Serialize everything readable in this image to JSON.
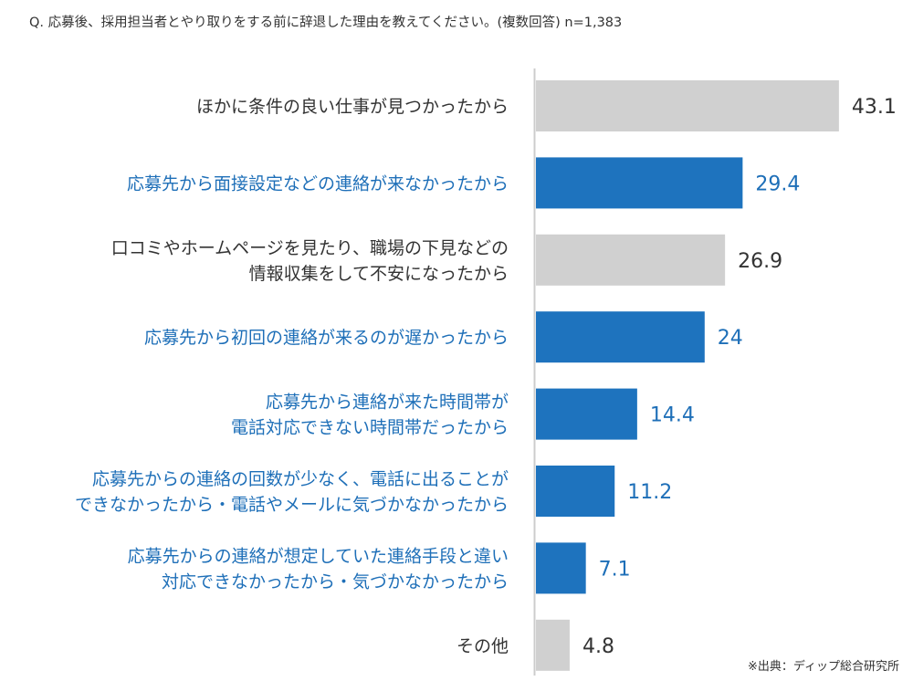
{
  "chart_data": {
    "type": "bar",
    "orientation": "horizontal",
    "title": "Q. 応募後、採用担当者とやり取りをする前に辞退した理由を教えてください。(複数回答) n=1,383",
    "categories": [
      [
        "ほかに条件の良い仕事が見つかったから"
      ],
      [
        "応募先から面接設定などの連絡が来なかったから"
      ],
      [
        "口コミやホームページを見たり、職場の下見などの",
        "情報収集をして不安になったから"
      ],
      [
        "応募先から初回の連絡が来るのが遅かったから"
      ],
      [
        "応募先から連絡が来た時間帯が",
        "電話対応できない時間帯だったから"
      ],
      [
        "応募先からの連絡の回数が少なく、電話に出ることが",
        "できなかったから・電話やメールに気づかなかったから"
      ],
      [
        "応募先からの連絡が想定していた連絡手段と違い",
        "対応できなかったから・気づかなかったから"
      ],
      [
        "その他"
      ]
    ],
    "values": [
      43.1,
      29.4,
      26.9,
      24,
      14.4,
      11.2,
      7.1,
      4.8
    ],
    "value_labels": [
      "43.1",
      "29.4",
      "26.9",
      "24",
      "14.4",
      "11.2",
      "7.1",
      "4.8"
    ],
    "highlighted": [
      false,
      true,
      false,
      true,
      true,
      true,
      true,
      false
    ],
    "colors": {
      "highlight": "#1e73be",
      "normal": "#d0d0d0",
      "highlight_text": "#1e6fb8",
      "normal_text": "#333333",
      "axis": "#cccccc"
    },
    "xlabel": "",
    "ylabel": "",
    "xlim": [
      0,
      50
    ],
    "grid": false,
    "legend": "none",
    "source_note": "※出典：ディップ総合研究所"
  }
}
